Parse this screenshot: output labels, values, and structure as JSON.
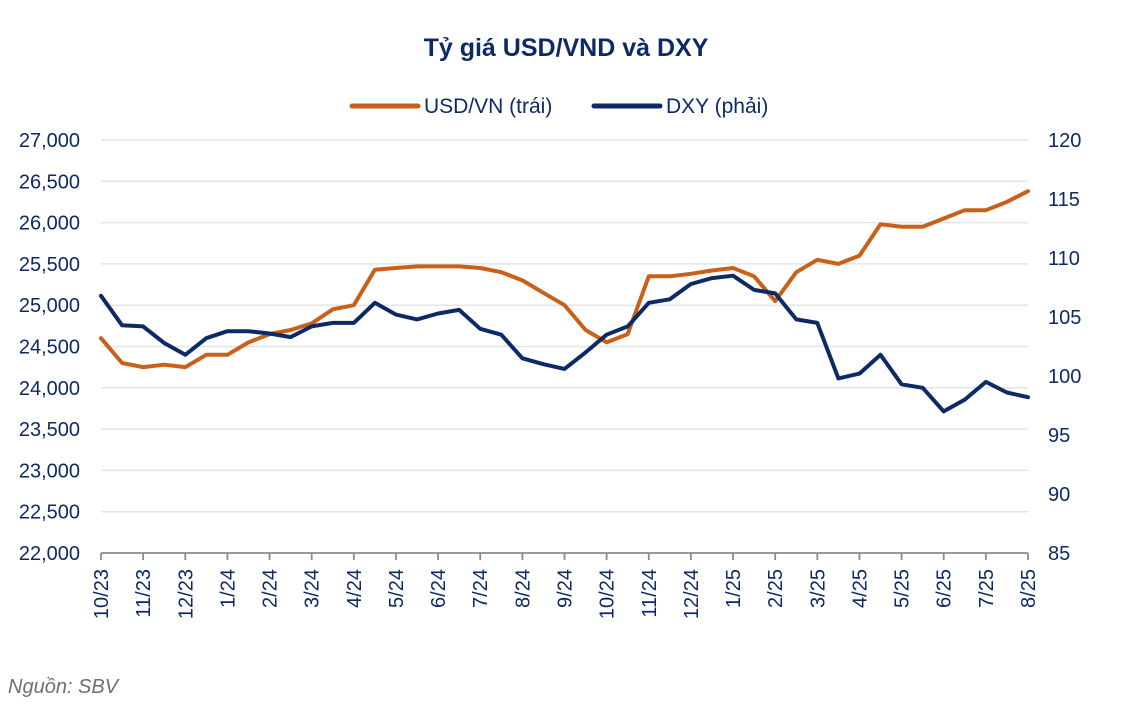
{
  "chart_data": {
    "type": "line",
    "title": "Tỷ giá USD/VND và DXY",
    "legend": {
      "placement": "top-center",
      "entries": [
        "USD/VN (trái)",
        "DXY (phải)"
      ]
    },
    "x_tick_labels": [
      "10/23",
      "11/23",
      "12/23",
      "1/24",
      "2/24",
      "3/24",
      "4/24",
      "5/24",
      "6/24",
      "7/24",
      "8/24",
      "9/24",
      "10/24",
      "11/24",
      "12/24",
      "1/25",
      "2/25",
      "3/25",
      "4/25",
      "5/25",
      "6/25",
      "7/25",
      "8/25"
    ],
    "left_axis": {
      "ylim": [
        22000,
        27000
      ],
      "tick_labels": [
        "22,000",
        "22,500",
        "23,000",
        "23,500",
        "24,000",
        "24,500",
        "25,000",
        "25,500",
        "26,000",
        "26,500",
        "27,000"
      ],
      "ticks": [
        22000,
        22500,
        23000,
        23500,
        24000,
        24500,
        25000,
        25500,
        26000,
        26500,
        27000
      ]
    },
    "right_axis": {
      "ylim": [
        85,
        120
      ],
      "tick_labels": [
        "85",
        "90",
        "95",
        "100",
        "105",
        "110",
        "115",
        "120"
      ],
      "ticks": [
        85,
        90,
        95,
        100,
        105,
        110,
        115,
        120
      ]
    },
    "grid": true,
    "x": [
      0,
      0.5,
      1,
      1.5,
      2,
      2.5,
      3,
      3.5,
      4,
      4.5,
      5,
      5.5,
      6,
      6.5,
      7,
      7.5,
      8,
      8.5,
      9,
      9.5,
      10,
      10.5,
      11,
      11.5,
      12,
      12.5,
      13,
      13.5,
      14,
      14.5,
      15,
      15.5,
      16,
      16.5,
      17,
      17.5,
      18,
      18.5,
      19,
      19.5,
      20,
      20.5,
      21,
      21.5,
      22
    ],
    "series": [
      {
        "name": "USD/VN (trái)",
        "axis": "left",
        "color": "#c8601a",
        "values": [
          24600,
          24300,
          24250,
          24280,
          24250,
          24400,
          24400,
          24550,
          24650,
          24700,
          24780,
          24950,
          25000,
          25430,
          25450,
          25470,
          25470,
          25470,
          25450,
          25400,
          25300,
          25150,
          25000,
          24700,
          24550,
          24650,
          25350,
          25350,
          25380,
          25420,
          25450,
          25350,
          25050,
          25400,
          25550,
          25500,
          25600,
          25980,
          25950,
          25950,
          26050,
          26150,
          26150,
          26250,
          26380
        ]
      },
      {
        "name": "DXY (phải)",
        "axis": "right",
        "color": "#0d2a66",
        "values": [
          106.8,
          104.3,
          104.2,
          102.8,
          101.8,
          103.2,
          103.8,
          103.8,
          103.6,
          103.3,
          104.2,
          104.5,
          104.5,
          106.2,
          105.2,
          104.8,
          105.3,
          105.6,
          104.0,
          103.5,
          101.5,
          101.0,
          100.6,
          102.0,
          103.5,
          104.2,
          106.2,
          106.5,
          107.8,
          108.3,
          108.5,
          107.3,
          107.0,
          104.8,
          104.5,
          99.8,
          100.2,
          101.8,
          99.3,
          99.0,
          97.0,
          98.0,
          99.5,
          98.6,
          98.2
        ]
      }
    ]
  },
  "source": "Nguồn: SBV"
}
